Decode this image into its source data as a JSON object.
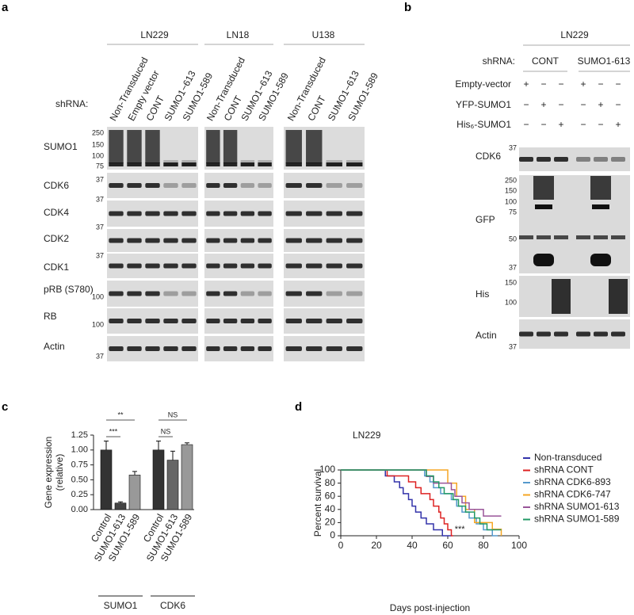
{
  "panel_labels": [
    "a",
    "b",
    "c",
    "d"
  ],
  "panel_a": {
    "shrna_label": "shRNA:",
    "groups": [
      {
        "name": "LN229",
        "lanes": [
          "Non-Transduced",
          "Empty vector",
          "CONT",
          "SUMO1−613",
          "SUMO1-589"
        ]
      },
      {
        "name": "LN18",
        "lanes": [
          "Non-Transduced",
          "CONT",
          "SUMO1−613",
          "SUMO1-589"
        ]
      },
      {
        "name": "U138",
        "lanes": [
          "Non-Transduced",
          "CONT",
          "SUMO1−613",
          "SUMO1-589"
        ]
      }
    ],
    "rows": [
      {
        "label": "SUMO1",
        "markers": [
          250,
          150,
          100,
          75
        ]
      },
      {
        "label": "CDK6",
        "markers": [
          37
        ]
      },
      {
        "label": "CDK4",
        "markers": [
          37
        ]
      },
      {
        "label": "CDK2",
        "markers": [
          37
        ]
      },
      {
        "label": "CDK1",
        "markers": [
          37
        ]
      },
      {
        "label": "pRB (S780)",
        "markers": [
          100
        ]
      },
      {
        "label": "RB",
        "markers": [
          100
        ]
      },
      {
        "label": "Actin",
        "markers": [
          37
        ]
      }
    ]
  },
  "panel_b": {
    "cell_line": "LN229",
    "shrna_label": "shRNA:",
    "shrna_groups": [
      "CONT",
      "SUMO1-613"
    ],
    "conditions": [
      {
        "label": "Empty-vector",
        "signs": [
          "+",
          "−",
          "−",
          "+",
          "−",
          "−"
        ]
      },
      {
        "label": "YFP-SUMO1",
        "signs": [
          "−",
          "+",
          "−",
          "−",
          "+",
          "−"
        ]
      },
      {
        "label": "His₆-SUMO1",
        "signs": [
          "−",
          "−",
          "+",
          "−",
          "−",
          "+"
        ]
      }
    ],
    "rows": [
      {
        "label": "CDK6",
        "markers": [
          37
        ]
      },
      {
        "label": "GFP",
        "markers": [
          250,
          150,
          100,
          75,
          50,
          37
        ]
      },
      {
        "label": "His",
        "markers": [
          150,
          100
        ]
      },
      {
        "label": "Actin",
        "markers": [
          37
        ]
      }
    ]
  },
  "chart_data": [
    {
      "type": "bar",
      "ylabel": [
        "Gene expression",
        "(relative)"
      ],
      "categories": [
        "Control",
        "SUMO1-613",
        "SUMO1-589",
        "Control",
        "SUMO1-613",
        "SUMO1-589"
      ],
      "group_labels": [
        "SUMO1",
        "CDK6"
      ],
      "values": [
        1.0,
        0.11,
        0.58,
        1.0,
        0.83,
        1.09
      ],
      "errors": [
        0.15,
        0.02,
        0.06,
        0.15,
        0.15,
        0.03
      ],
      "colors": [
        "#333333",
        "#444444",
        "#999999",
        "#333333",
        "#666666",
        "#999999"
      ],
      "significance": [
        "**",
        "***",
        "NS",
        "NS"
      ],
      "ylim": [
        0,
        1.25
      ],
      "yticks": [
        {
          "value": 0,
          "label": "0.00"
        },
        {
          "value": 0.25,
          "label": "0.25"
        },
        {
          "value": 0.5,
          "label": "0.50"
        },
        {
          "value": 0.75,
          "label": "0.75"
        },
        {
          "value": 1.0,
          "label": "1.00"
        },
        {
          "value": 1.25,
          "label": "1.25"
        }
      ]
    },
    {
      "type": "line",
      "title": "LN229",
      "xlabel": "Days post-injection",
      "ylabel": "Percent survival",
      "annotation": "***",
      "xlim": [
        0,
        100
      ],
      "ylim": [
        0,
        100
      ],
      "xticks": [
        0,
        20,
        40,
        60,
        80,
        100
      ],
      "yticks": [
        0,
        20,
        40,
        60,
        80,
        100
      ],
      "series": [
        {
          "name": "Non-transduced",
          "color": "#3333aa",
          "x": [
            0,
            25,
            25,
            30,
            30,
            33,
            33,
            35,
            35,
            38,
            38,
            40,
            40,
            42,
            42,
            45,
            45,
            48,
            48,
            52,
            52,
            57,
            57,
            62
          ],
          "values": [
            100,
            100,
            91,
            91,
            82,
            82,
            73,
            73,
            64,
            64,
            55,
            55,
            45,
            45,
            36,
            36,
            27,
            27,
            18,
            18,
            9,
            9,
            0,
            0
          ]
        },
        {
          "name": "shRNA CONT",
          "color": "#dd2222",
          "x": [
            0,
            26,
            26,
            38,
            38,
            42,
            42,
            45,
            45,
            50,
            50,
            52,
            52,
            55,
            55,
            56,
            56,
            58,
            58,
            60,
            60,
            62,
            62,
            63
          ],
          "values": [
            100,
            100,
            91,
            91,
            82,
            82,
            73,
            73,
            64,
            64,
            55,
            55,
            45,
            45,
            36,
            36,
            27,
            27,
            18,
            18,
            9,
            9,
            0,
            0
          ]
        },
        {
          "name": "shRNA CDK6-893",
          "color": "#5599cc",
          "x": [
            0,
            47,
            47,
            50,
            50,
            52,
            52,
            56,
            56,
            62,
            62,
            65,
            65,
            68,
            68,
            72,
            72,
            76,
            76,
            80,
            80,
            85,
            85,
            88
          ],
          "values": [
            100,
            100,
            91,
            91,
            82,
            82,
            73,
            73,
            64,
            64,
            55,
            55,
            45,
            45,
            36,
            36,
            27,
            27,
            18,
            18,
            9,
            9,
            0,
            0
          ]
        },
        {
          "name": "shRNA CDK6-747",
          "color": "#f5a623",
          "x": [
            0,
            60,
            60,
            65,
            65,
            70,
            70,
            75,
            75,
            85,
            85,
            90,
            90
          ],
          "values": [
            100,
            100,
            80,
            80,
            60,
            60,
            40,
            40,
            20,
            20,
            10,
            10,
            0
          ]
        },
        {
          "name": "shRNA SUMO1-613",
          "color": "#995599",
          "x": [
            0,
            48,
            48,
            52,
            52,
            62,
            62,
            64,
            64,
            68,
            68,
            72,
            72,
            80,
            80,
            90
          ],
          "values": [
            100,
            100,
            90,
            90,
            80,
            80,
            70,
            70,
            60,
            60,
            50,
            50,
            40,
            40,
            30,
            30
          ]
        },
        {
          "name": "shRNA SUMO1-589",
          "color": "#229966",
          "x": [
            0,
            48,
            48,
            52,
            52,
            55,
            55,
            58,
            58,
            63,
            63,
            66,
            66,
            70,
            70,
            75,
            75,
            78,
            78,
            82,
            82,
            90
          ],
          "values": [
            100,
            100,
            91,
            91,
            82,
            82,
            73,
            73,
            64,
            64,
            55,
            55,
            45,
            45,
            36,
            36,
            27,
            27,
            18,
            18,
            9,
            9
          ]
        }
      ]
    }
  ]
}
